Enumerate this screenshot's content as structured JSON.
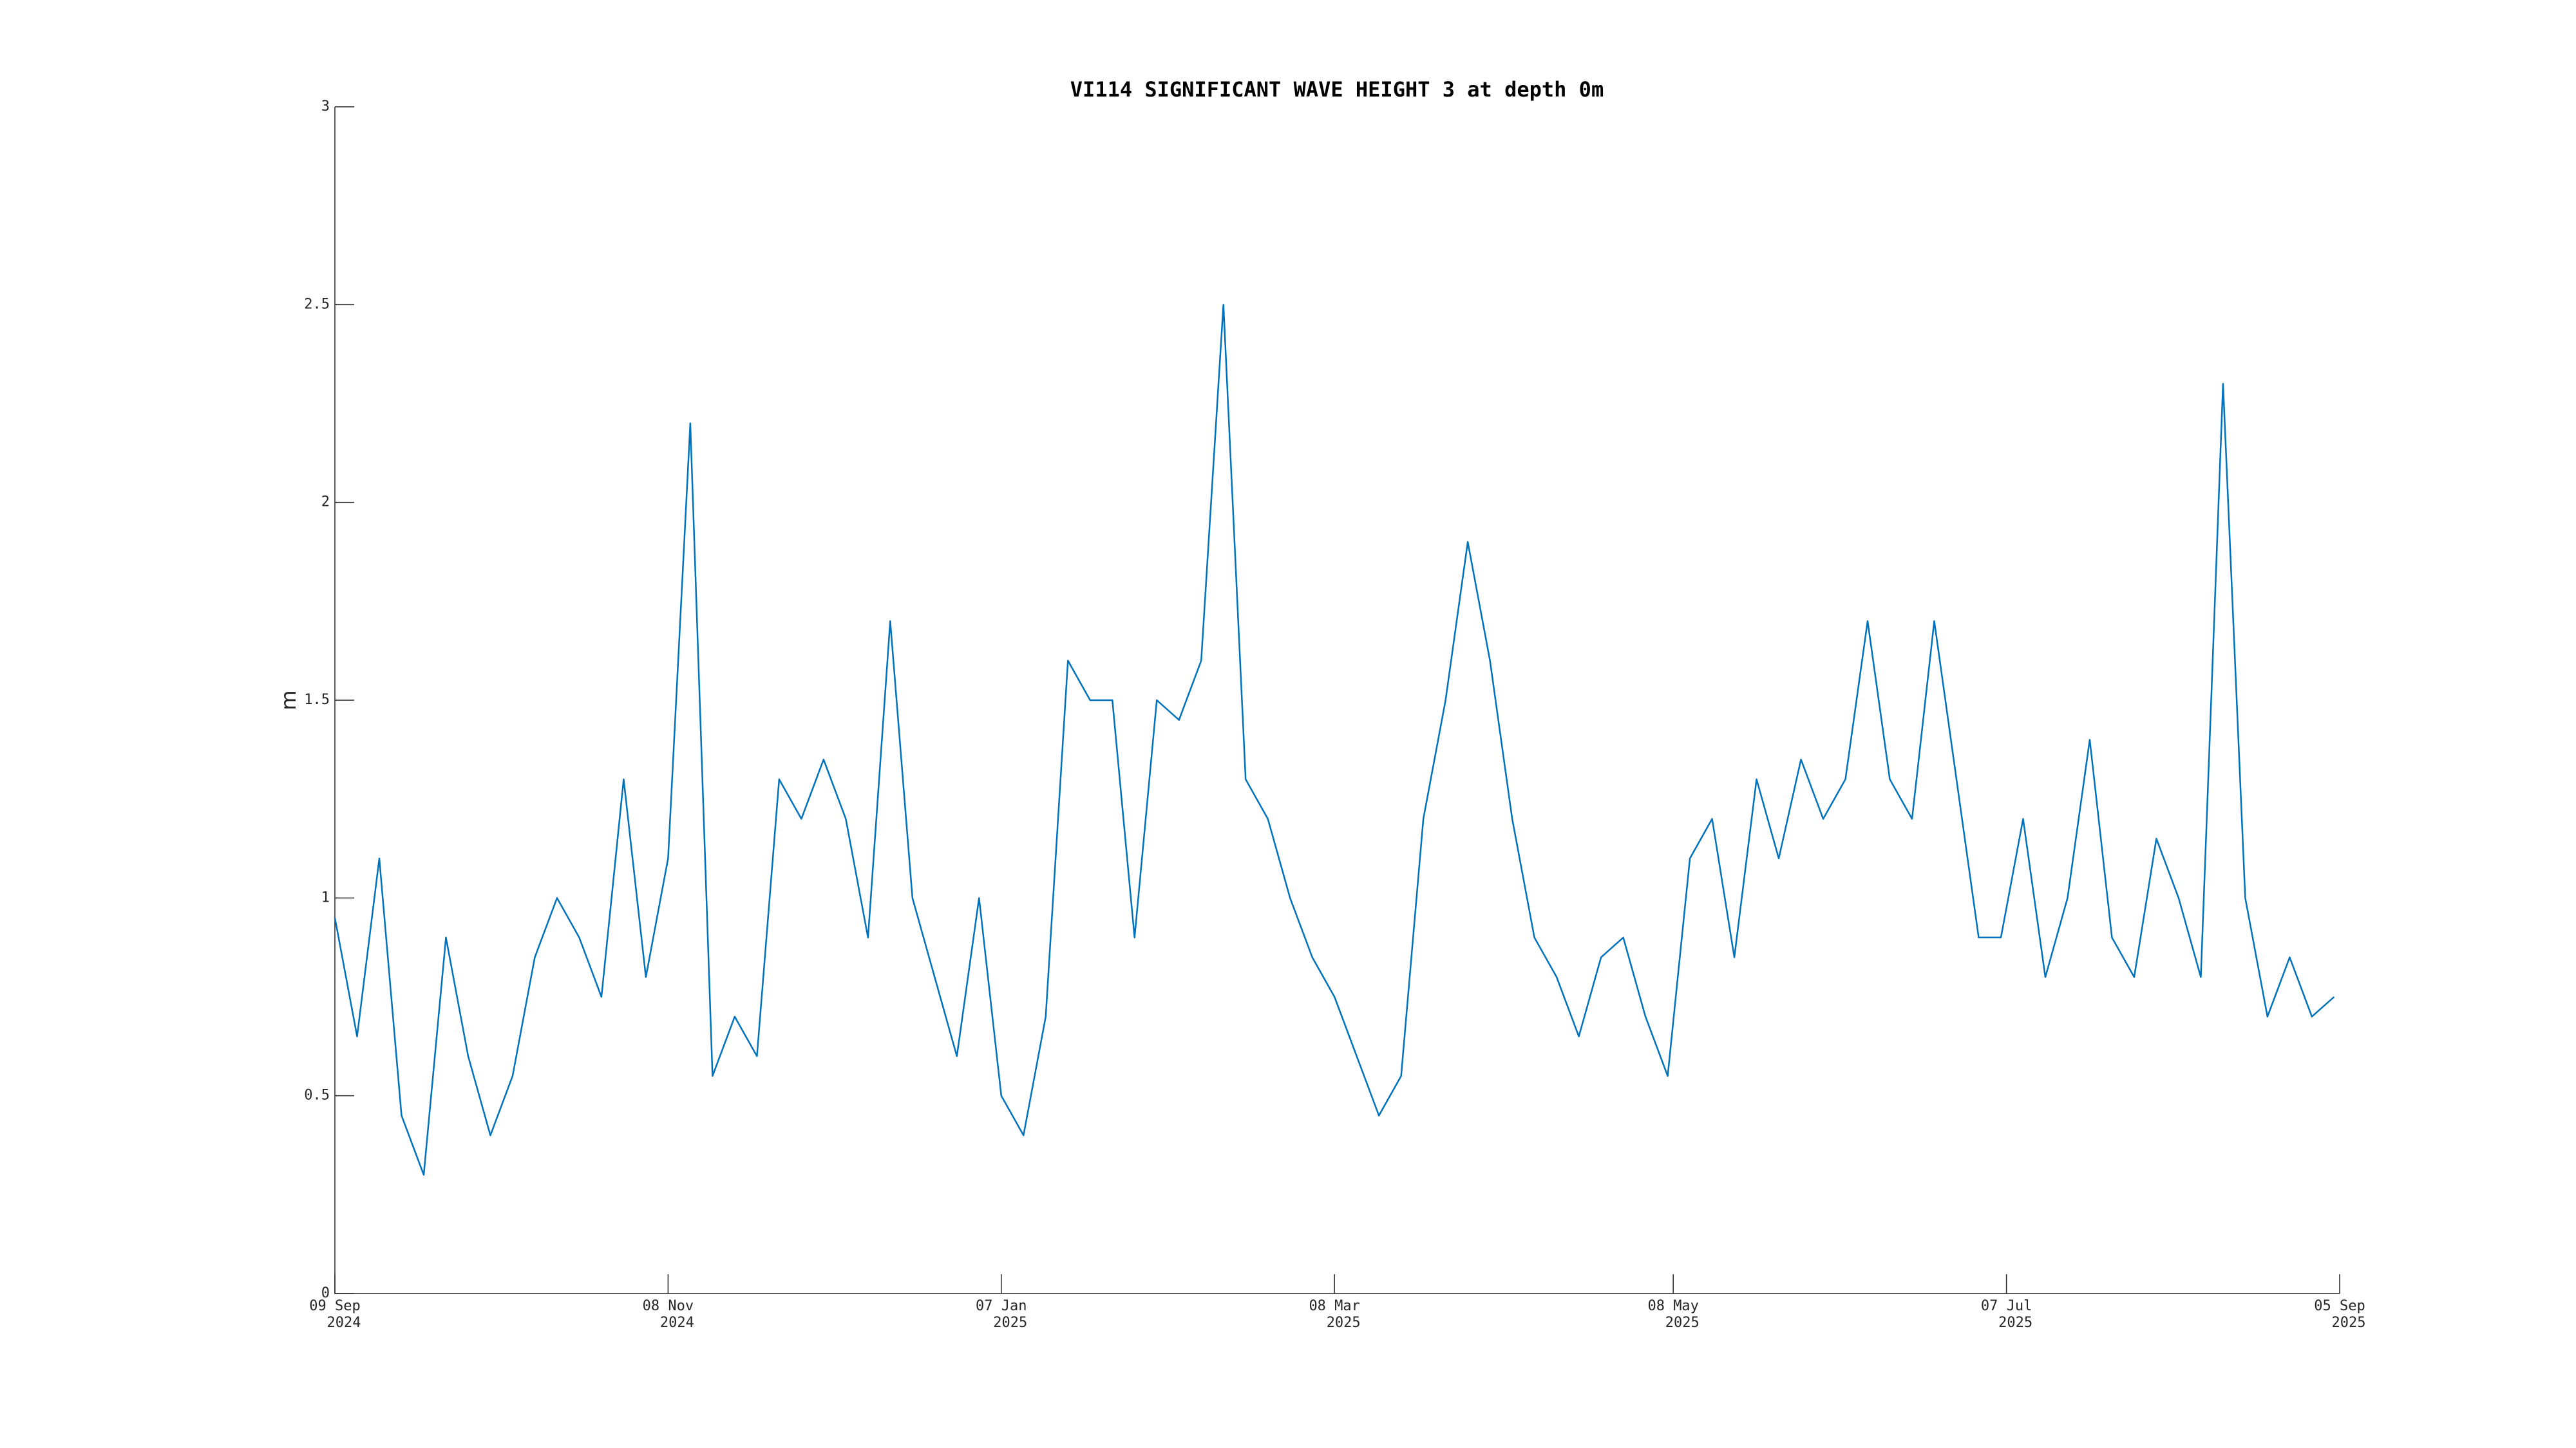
{
  "chart_data": {
    "type": "line",
    "title": "VI114 SIGNIFICANT WAVE HEIGHT 3 at depth 0m",
    "ylabel": "m",
    "x": [
      "2024-09-09",
      "2024-09-13",
      "2024-09-17",
      "2024-09-21",
      "2024-09-25",
      "2024-09-29",
      "2024-10-03",
      "2024-10-07",
      "2024-10-11",
      "2024-10-15",
      "2024-10-19",
      "2024-10-23",
      "2024-10-27",
      "2024-10-31",
      "2024-11-04",
      "2024-11-08",
      "2024-11-12",
      "2024-11-16",
      "2024-11-20",
      "2024-11-24",
      "2024-11-28",
      "2024-12-02",
      "2024-12-06",
      "2024-12-10",
      "2024-12-14",
      "2024-12-18",
      "2024-12-22",
      "2024-12-26",
      "2024-12-30",
      "2025-01-03",
      "2025-01-07",
      "2025-01-11",
      "2025-01-15",
      "2025-01-19",
      "2025-01-23",
      "2025-01-27",
      "2025-01-31",
      "2025-02-04",
      "2025-02-08",
      "2025-02-12",
      "2025-02-16",
      "2025-02-20",
      "2025-02-24",
      "2025-02-28",
      "2025-03-04",
      "2025-03-08",
      "2025-03-12",
      "2025-03-16",
      "2025-03-20",
      "2025-03-24",
      "2025-03-28",
      "2025-04-01",
      "2025-04-05",
      "2025-04-09",
      "2025-04-13",
      "2025-04-17",
      "2025-04-21",
      "2025-04-25",
      "2025-04-29",
      "2025-05-03",
      "2025-05-07",
      "2025-05-11",
      "2025-05-15",
      "2025-05-19",
      "2025-05-23",
      "2025-05-27",
      "2025-05-31",
      "2025-06-04",
      "2025-06-08",
      "2025-06-12",
      "2025-06-16",
      "2025-06-20",
      "2025-06-24",
      "2025-06-28",
      "2025-07-02",
      "2025-07-06",
      "2025-07-10",
      "2025-07-14",
      "2025-07-18",
      "2025-07-22",
      "2025-07-26",
      "2025-07-30",
      "2025-08-03",
      "2025-08-07",
      "2025-08-11",
      "2025-08-15",
      "2025-08-19",
      "2025-08-23",
      "2025-08-27",
      "2025-08-31",
      "2025-09-04"
    ],
    "series": [
      {
        "name": "VI114 SIGNIFICANT WAVE HEIGHT 3",
        "color": "#0072bd",
        "values": [
          0.95,
          0.65,
          1.1,
          0.45,
          0.3,
          0.9,
          0.6,
          0.4,
          0.55,
          0.85,
          1.0,
          0.9,
          0.75,
          1.3,
          0.8,
          1.1,
          2.2,
          0.55,
          0.7,
          0.6,
          1.3,
          1.2,
          1.35,
          1.2,
          0.9,
          1.7,
          1.0,
          0.8,
          0.6,
          1.0,
          0.5,
          0.4,
          0.7,
          1.6,
          1.5,
          1.5,
          0.9,
          1.5,
          1.45,
          1.6,
          2.5,
          1.3,
          1.2,
          1.0,
          0.85,
          0.75,
          0.6,
          0.45,
          0.55,
          1.2,
          1.5,
          1.9,
          1.6,
          1.2,
          0.9,
          0.8,
          0.65,
          0.85,
          0.9,
          0.7,
          0.55,
          1.1,
          1.2,
          0.85,
          1.3,
          1.1,
          1.35,
          1.2,
          1.3,
          1.7,
          1.3,
          1.2,
          1.7,
          1.3,
          0.9,
          0.9,
          1.2,
          0.8,
          1.0,
          1.4,
          0.9,
          0.8,
          1.15,
          1.0,
          0.8,
          2.3,
          1.0,
          0.7,
          0.85,
          0.7,
          0.75
        ]
      }
    ],
    "xlim": [
      "2024-09-09",
      "2025-09-05"
    ],
    "xticks": [
      {
        "value": "2024-09-09",
        "label": [
          "09 Sep",
          "2024"
        ]
      },
      {
        "value": "2024-11-08",
        "label": [
          "08 Nov",
          "2024"
        ]
      },
      {
        "value": "2025-01-07",
        "label": [
          "07 Jan",
          "2025"
        ]
      },
      {
        "value": "2025-03-08",
        "label": [
          "08 Mar",
          "2025"
        ]
      },
      {
        "value": "2025-05-08",
        "label": [
          "08 May",
          "2025"
        ]
      },
      {
        "value": "2025-07-07",
        "label": [
          "07 Jul",
          "2025"
        ]
      },
      {
        "value": "2025-09-05",
        "label": [
          "05 Sep",
          "2025"
        ]
      }
    ],
    "ylim": [
      0,
      3
    ],
    "yticks": [
      0,
      0.5,
      1,
      1.5,
      2,
      2.5,
      3
    ],
    "grid": false
  }
}
